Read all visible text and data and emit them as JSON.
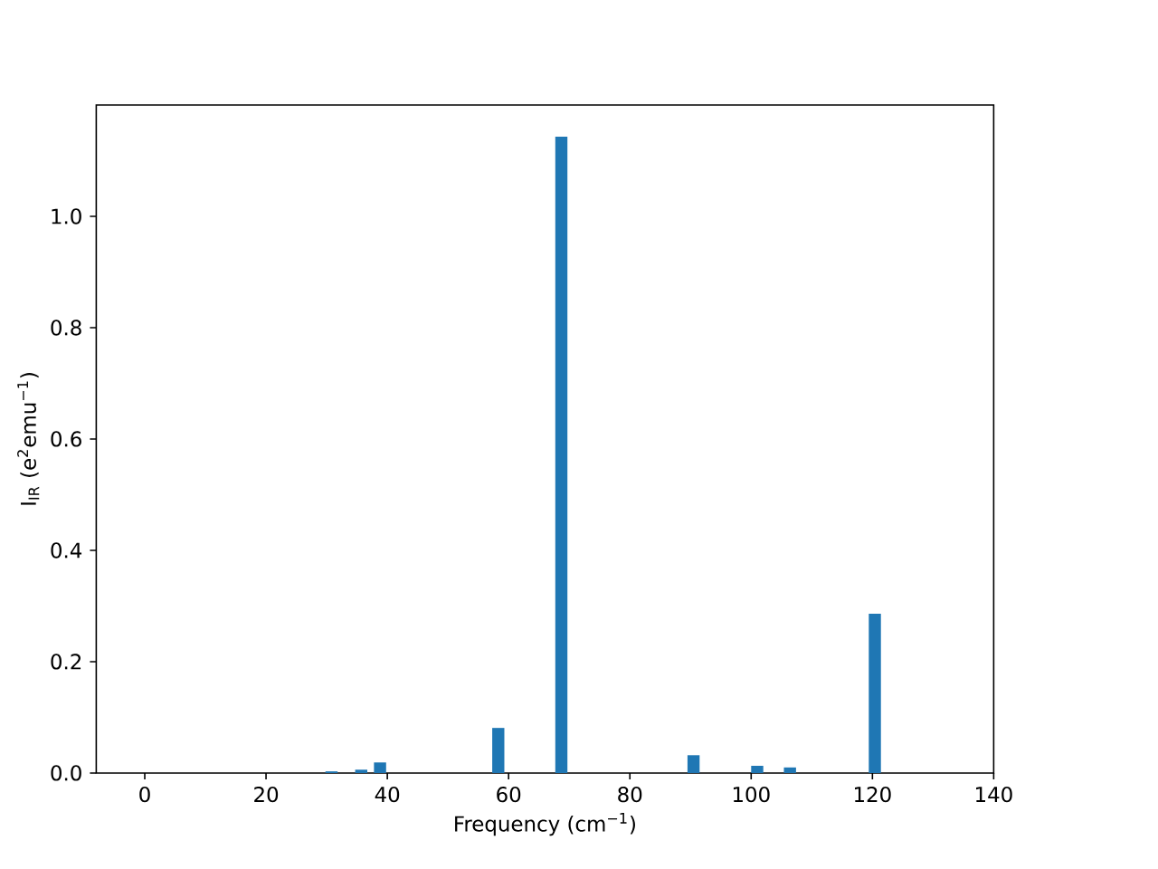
{
  "chart_data": {
    "type": "bar",
    "xlabel": "Frequency (cm$^{−1}$)",
    "ylabel": "I$_{IR}$ (e$^{2}$emu$^{−1}$)",
    "x": [
      30.8,
      35.7,
      38.8,
      58.3,
      68.7,
      90.5,
      101.0,
      106.4,
      120.4
    ],
    "values": [
      0.003,
      0.006,
      0.019,
      0.081,
      1.143,
      0.032,
      0.013,
      0.01,
      0.286
    ],
    "color": "#1f77b4",
    "xlim": [
      -8,
      140
    ],
    "ylim": [
      0,
      1.2
    ],
    "xticks": [
      0,
      20,
      40,
      60,
      80,
      100,
      120,
      140
    ],
    "yticks": [
      {
        "value": 0,
        "label": "0.0"
      },
      {
        "value": 0.2,
        "label": "0.2"
      },
      {
        "value": 0.4,
        "label": "0.4"
      },
      {
        "value": 0.6,
        "label": "0.6"
      },
      {
        "value": 0.8,
        "label": "0.8"
      },
      {
        "value": 1.0,
        "label": "1.0"
      }
    ],
    "grid": false
  }
}
